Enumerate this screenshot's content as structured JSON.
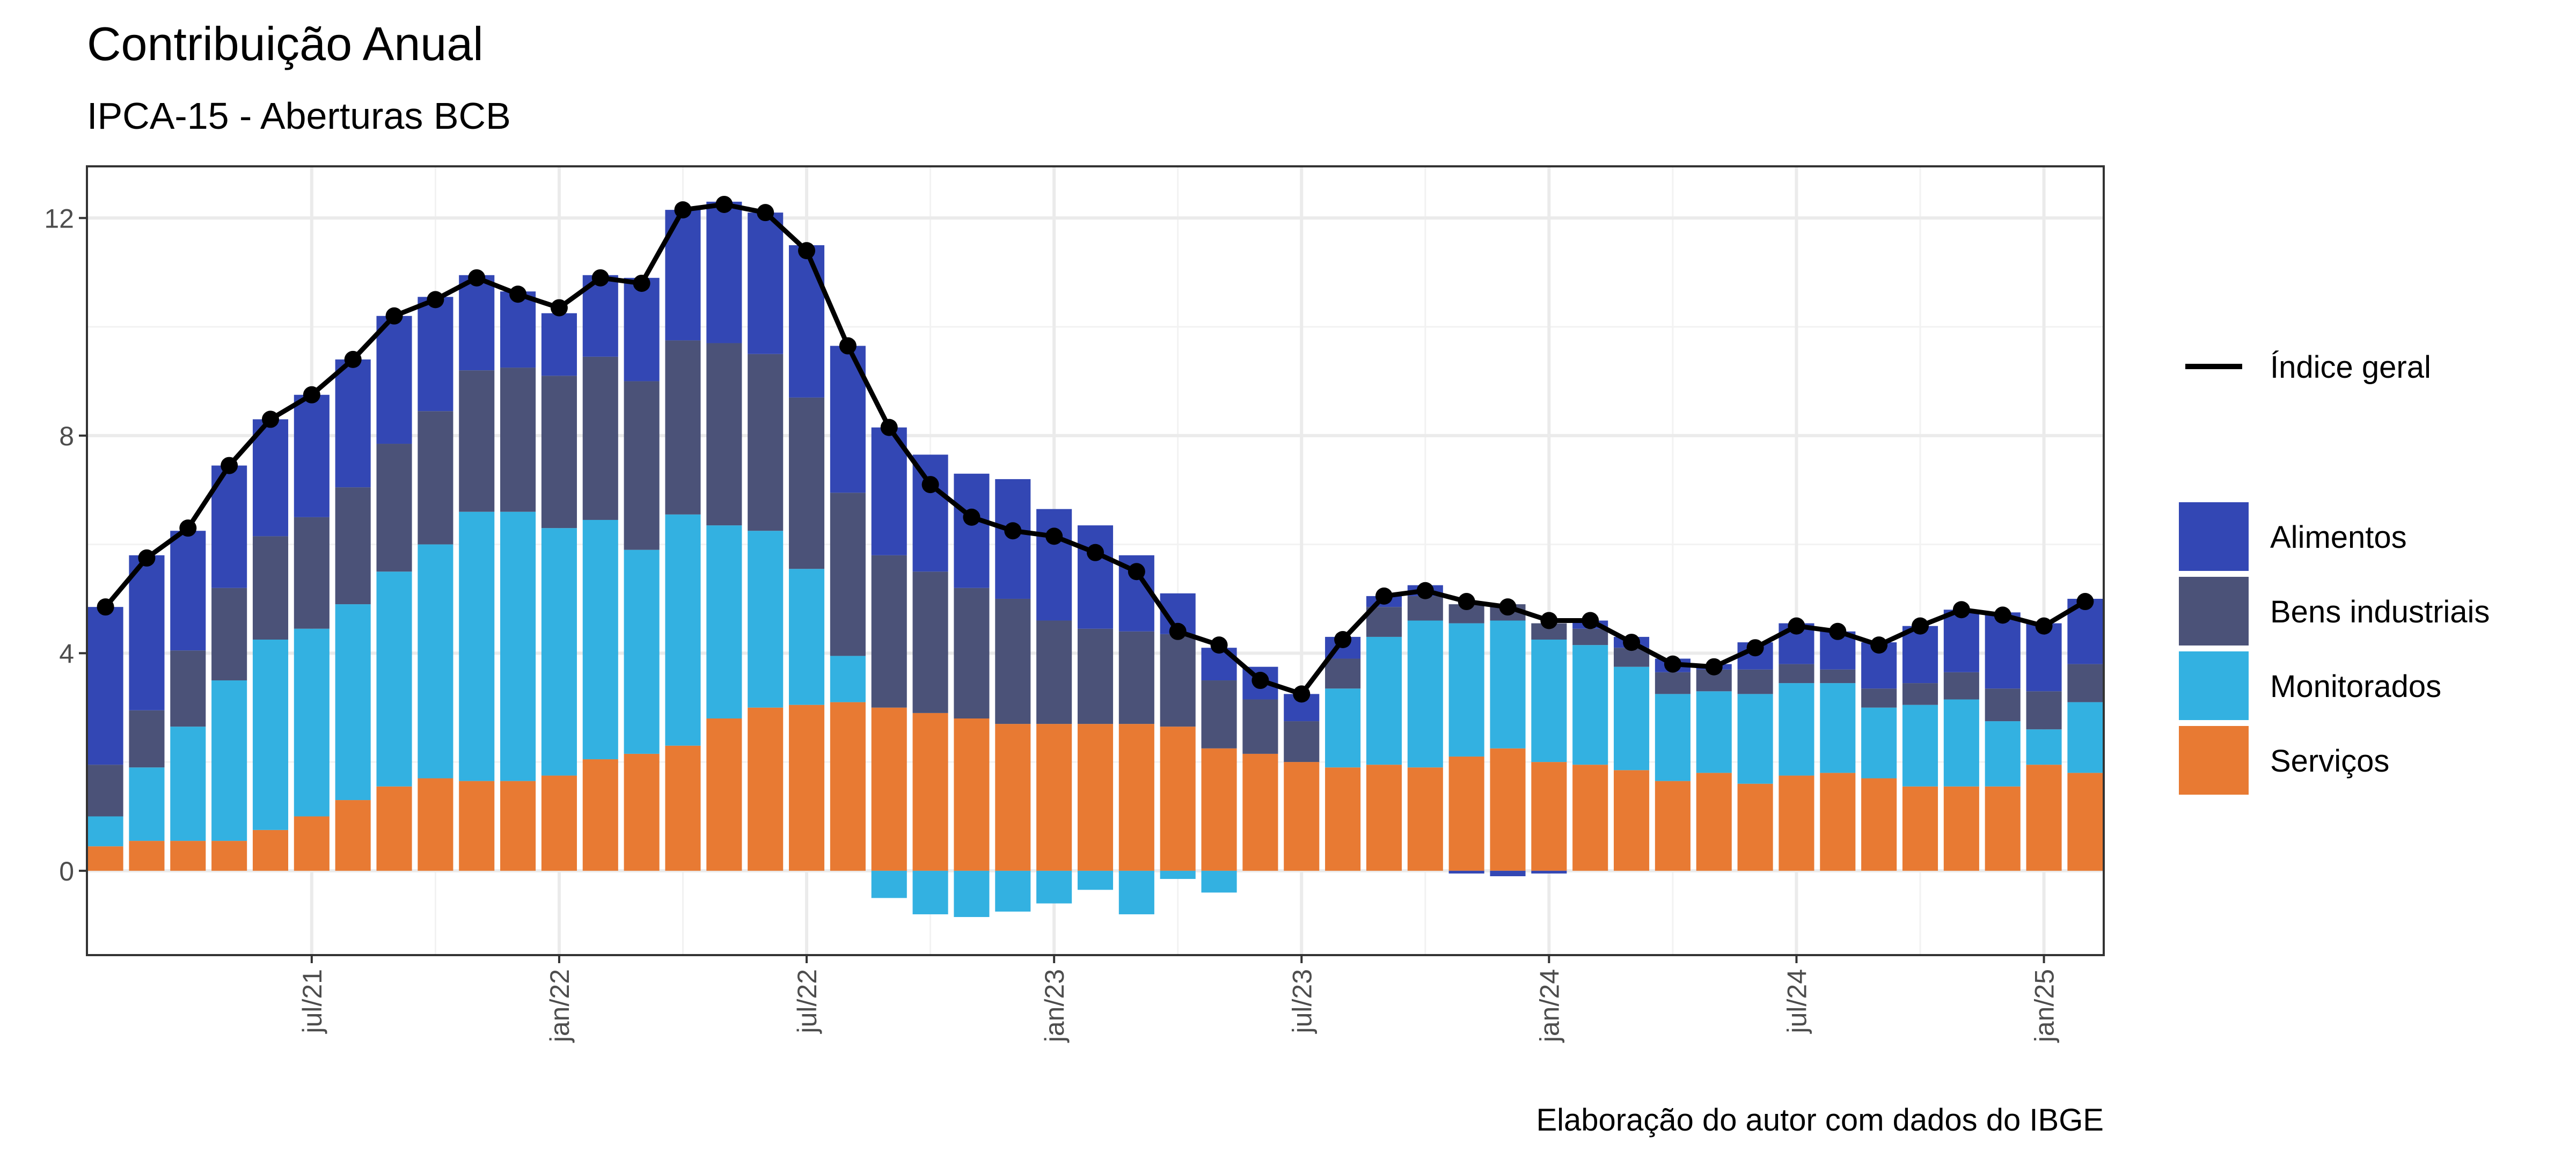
{
  "title": "Contribuição Anual",
  "subtitle": "IPCA-15 - Aberturas BCB",
  "caption": "Elaboração do autor com dados do IBGE",
  "colors": {
    "Alimentos": "#3347b4",
    "Bens industriais": "#4b5278",
    "Monitorados": "#33b1e1",
    "Serviços": "#e87a33",
    "Índice geral": "#000000"
  },
  "chart_data": {
    "type": "bar",
    "stacked": true,
    "categories": [
      "2021-02",
      "2021-03",
      "2021-04",
      "2021-05",
      "2021-06",
      "2021-07",
      "2021-08",
      "2021-09",
      "2021-10",
      "2021-11",
      "2021-12",
      "2022-01",
      "2022-02",
      "2022-03",
      "2022-04",
      "2022-05",
      "2022-06",
      "2022-07",
      "2022-08",
      "2022-09",
      "2022-10",
      "2022-11",
      "2022-12",
      "2023-01",
      "2023-02",
      "2023-03",
      "2023-04",
      "2023-05",
      "2023-06",
      "2023-07",
      "2023-08",
      "2023-09",
      "2023-10",
      "2023-11",
      "2023-12",
      "2024-01",
      "2024-02",
      "2024-03",
      "2024-04",
      "2024-05",
      "2024-06",
      "2024-07",
      "2024-08",
      "2024-09",
      "2024-10",
      "2024-11",
      "2024-12",
      "2025-01",
      "2025-02"
    ],
    "series": [
      {
        "name": "Serviços",
        "values": [
          0.45,
          0.55,
          0.55,
          0.55,
          0.75,
          1.0,
          1.3,
          1.55,
          1.7,
          1.65,
          1.65,
          1.75,
          2.05,
          2.15,
          2.3,
          2.8,
          3.0,
          3.05,
          3.1,
          3.0,
          2.9,
          2.8,
          2.7,
          2.7,
          2.7,
          2.7,
          2.65,
          2.25,
          2.15,
          2.0,
          1.9,
          1.95,
          1.9,
          2.1,
          2.25,
          2.0,
          1.95,
          1.85,
          1.65,
          1.8,
          1.6,
          1.75,
          1.8,
          1.7,
          1.55,
          1.55,
          1.55,
          1.95,
          1.8
        ]
      },
      {
        "name": "Monitorados",
        "values": [
          0.55,
          1.35,
          2.1,
          2.95,
          3.5,
          3.45,
          3.6,
          3.95,
          4.3,
          4.95,
          4.95,
          4.55,
          4.4,
          3.75,
          4.25,
          3.55,
          3.25,
          2.5,
          0.85,
          -0.5,
          -0.8,
          -0.85,
          -0.75,
          -0.6,
          -0.35,
          -0.8,
          -0.15,
          -0.4,
          0.0,
          0.0,
          1.45,
          2.35,
          2.7,
          2.45,
          2.35,
          2.25,
          2.2,
          1.9,
          1.6,
          1.5,
          1.65,
          1.7,
          1.65,
          1.3,
          1.5,
          1.6,
          1.2,
          0.65,
          1.3
        ]
      },
      {
        "name": "Bens industriais",
        "values": [
          0.95,
          1.05,
          1.4,
          1.7,
          1.9,
          2.05,
          2.15,
          2.35,
          2.45,
          2.6,
          2.65,
          2.8,
          3.0,
          3.1,
          3.2,
          3.35,
          3.25,
          3.15,
          3.0,
          2.8,
          2.6,
          2.4,
          2.3,
          1.9,
          1.75,
          1.7,
          1.7,
          1.25,
          1.0,
          0.75,
          0.55,
          0.55,
          0.45,
          0.35,
          0.3,
          0.3,
          0.3,
          0.35,
          0.4,
          0.4,
          0.45,
          0.35,
          0.25,
          0.35,
          0.4,
          0.5,
          0.6,
          0.7,
          0.7
        ]
      },
      {
        "name": "Alimentos",
        "values": [
          2.9,
          2.85,
          2.2,
          2.25,
          2.15,
          2.25,
          2.35,
          2.35,
          2.1,
          1.75,
          1.4,
          1.15,
          1.5,
          1.9,
          2.4,
          2.6,
          2.6,
          2.8,
          2.7,
          2.35,
          2.15,
          2.1,
          2.2,
          2.05,
          1.9,
          1.4,
          0.75,
          0.6,
          0.6,
          0.5,
          0.4,
          0.2,
          0.2,
          -0.05,
          -0.1,
          -0.05,
          0.15,
          0.2,
          0.25,
          0.1,
          0.5,
          0.75,
          0.7,
          0.85,
          1.05,
          1.15,
          1.4,
          1.25,
          1.2
        ]
      },
      {
        "name": "Índice geral",
        "type": "line",
        "values": [
          4.85,
          5.75,
          6.3,
          7.45,
          8.3,
          8.75,
          9.4,
          10.2,
          10.5,
          10.9,
          10.6,
          10.35,
          10.9,
          10.8,
          12.15,
          12.25,
          12.1,
          11.4,
          9.65,
          8.15,
          7.1,
          6.5,
          6.25,
          6.15,
          5.85,
          5.5,
          4.4,
          4.15,
          3.5,
          3.25,
          4.25,
          5.05,
          5.15,
          4.95,
          4.85,
          4.6,
          4.6,
          4.2,
          3.8,
          3.75,
          4.1,
          4.5,
          4.4,
          4.15,
          4.5,
          4.8,
          4.7,
          4.5,
          4.95
        ]
      }
    ],
    "x_ticks": [
      {
        "date": "2021-07",
        "label": "jul/21"
      },
      {
        "date": "2022-01",
        "label": "jan/22"
      },
      {
        "date": "2022-07",
        "label": "jul/22"
      },
      {
        "date": "2023-01",
        "label": "jan/23"
      },
      {
        "date": "2023-07",
        "label": "jul/23"
      },
      {
        "date": "2024-01",
        "label": "jan/24"
      },
      {
        "date": "2024-07",
        "label": "jul/24"
      },
      {
        "date": "2025-01",
        "label": "jan/25"
      }
    ],
    "y_ticks": [
      0,
      4,
      8,
      12
    ],
    "ylim": [
      -1.55,
      12.95
    ],
    "grid": true,
    "legend_line": [
      "Índice geral"
    ],
    "legend_bars": [
      "Alimentos",
      "Bens industriais",
      "Monitorados",
      "Serviços"
    ],
    "legend_position": "right"
  }
}
